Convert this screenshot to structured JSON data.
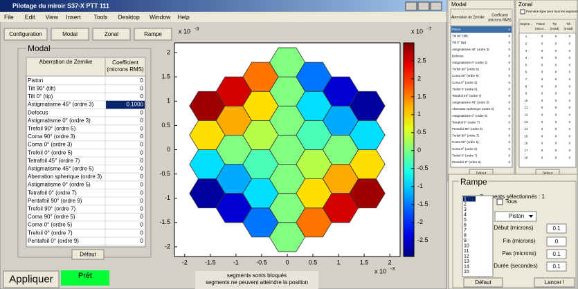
{
  "window": {
    "title": "Pilotage du miroir S37-X PTT 111",
    "menu": [
      "File",
      "Edit",
      "View",
      "Insert",
      "Tools",
      "Desktop",
      "Window",
      "Help"
    ],
    "tabs": [
      "Configuration",
      "Modal",
      "Zonal",
      "Rampe"
    ]
  },
  "modal": {
    "title": "Modal",
    "headers": [
      "Aberration de Zernike",
      "Coefficient",
      "(microns RMS)"
    ],
    "rows": [
      [
        "Piston",
        "0"
      ],
      [
        "Tilt 90° (tilt)",
        "0"
      ],
      [
        "Tilt 0° (tip)",
        "0"
      ],
      [
        "Astigmatisme 45° (ordre 3)",
        "0.1000"
      ],
      [
        "Defocus",
        "0"
      ],
      [
        "Astigmatisme 0° (ordre 3)",
        "0"
      ],
      [
        "Trefoil 90° (ordre 5)",
        "0"
      ],
      [
        "Coma 90° (ordre 3)",
        "0"
      ],
      [
        "Coma 0° (ordre 3)",
        "0"
      ],
      [
        "Trefoil 0° (ordre 5)",
        "0"
      ],
      [
        "Tetrafoil 45° (ordre 7)",
        "0"
      ],
      [
        "Astigmatisme 45° (ordre 5)",
        "0"
      ],
      [
        "Aberration spherique (ordre 3)",
        "0"
      ],
      [
        "Astigmatisme 0° (ordre 5)",
        "0"
      ],
      [
        "Tetrafoil 0° (ordre 7)",
        "0"
      ],
      [
        "Pentafoil 90° (ordre 9)",
        "0"
      ],
      [
        "Trefoil 90° (ordre 7)",
        "0"
      ],
      [
        "Coma 90° (ordre 5)",
        "0"
      ],
      [
        "Coma 0° (ordre 5)",
        "0"
      ],
      [
        "Trefoil 0° (ordre 7)",
        "0"
      ],
      [
        "Pentafoil 0° (ordre 9)",
        "0"
      ]
    ],
    "button": "Défaut"
  },
  "plot": {
    "x_scale": {
      "base": "x 10",
      "exp": "-3"
    },
    "y_scale": {
      "base": "x 10",
      "exp": "-3"
    },
    "xlim": [
      -2.2,
      2.2
    ],
    "ylim": [
      -2.2,
      2.2
    ],
    "xticks": [
      -2,
      -1.5,
      -1,
      -0.5,
      0,
      0.5,
      1,
      1.5,
      2
    ],
    "yticks": [
      -2,
      -1.5,
      -1,
      -0.5,
      0,
      0.5,
      1,
      1.5,
      2
    ],
    "colorbar": {
      "scale": {
        "base": "x 10",
        "exp": "-7"
      },
      "lim": [
        -2.95,
        3.0
      ],
      "ticks": [
        2.5,
        2,
        1.5,
        1,
        0.5,
        0,
        -0.5,
        -1,
        -1.5,
        -2,
        -2.5
      ]
    }
  },
  "footer": {
    "apply": "Appliquer",
    "status": "Prêt",
    "message": [
      "segments sonts bloqués",
      "segments ne peuvent atteindre la position"
    ]
  },
  "side_modal": {
    "title": "Modal",
    "headers": [
      "Aberration de Zernike",
      "Coefficient",
      "(microns RMS)"
    ],
    "rows": [
      [
        "Piston",
        "0"
      ],
      [
        "Tilt 90° (tilt)",
        "0"
      ],
      [
        "Tilt 0° (tip)",
        "0"
      ],
      [
        "Astigmatisme 45° (ordre 3)",
        "0"
      ],
      [
        "Defocus",
        "0"
      ],
      [
        "Astigmatisme 0° (ordre 3)",
        "0"
      ],
      [
        "Trefoil 90° (ordre 5)",
        "0"
      ],
      [
        "Coma 90° (ordre 5)",
        "0"
      ],
      [
        "Coma 0° (ordre 3)",
        "0"
      ],
      [
        "Trefoil 0° (ordre 5)",
        "0"
      ],
      [
        "Tetrafoil 45° (ordre 7)",
        "0"
      ],
      [
        "Astigmatisme 45° (ordre 5)",
        "0"
      ],
      [
        "Aberration spherique (ordre 3)",
        "0"
      ],
      [
        "Astigmatisme 0° (ordre 5)",
        "0"
      ],
      [
        "Tetrafoil 0° (ordre 7)",
        "0"
      ],
      [
        "Pentafoil 90° (ordre 9)",
        "0"
      ],
      [
        "Trefoil 90° (ordre 7)",
        "0"
      ],
      [
        "Coma 90° (ordre 5)",
        "0"
      ],
      [
        "Coma 0° (ordre 5)",
        "0"
      ],
      [
        "Trefoil 0° (ordre 7)",
        "0"
      ],
      [
        "Pentafoil 0° (ordre 9)",
        "0"
      ]
    ],
    "button": "Défaut"
  },
  "zonal": {
    "title": "Zonal",
    "checkbox": "Première ligne pour tous les segments",
    "headers": [
      [
        "Segme..."
      ],
      [
        "Piston",
        "(micro..."
      ],
      [
        "Tip",
        "(mrad)"
      ],
      [
        "Tilt",
        "(mrad)"
      ]
    ],
    "rows": [
      [
        "1",
        "0",
        "0",
        "0"
      ],
      [
        "2",
        "0",
        "0",
        "0"
      ],
      [
        "3",
        "0",
        "0",
        "0"
      ],
      [
        "4",
        "0",
        "0",
        "0"
      ],
      [
        "5",
        "0",
        "0",
        "0"
      ],
      [
        "6",
        "0",
        "0",
        "0"
      ],
      [
        "7",
        "0",
        "0",
        "0"
      ],
      [
        "8",
        "0",
        "0",
        "0"
      ],
      [
        "9",
        "0",
        "0",
        "0"
      ],
      [
        "10",
        "0",
        "0",
        "0"
      ],
      [
        "11",
        "0",
        "0",
        "0"
      ],
      [
        "12",
        "0",
        "0",
        "0"
      ],
      [
        "13",
        "0",
        "0",
        "0"
      ],
      [
        "14",
        "0",
        "0",
        "0"
      ],
      [
        "15",
        "0",
        "0",
        "0"
      ],
      [
        "16",
        "0",
        "0",
        "0"
      ],
      [
        "17",
        "0",
        "0",
        "0"
      ],
      [
        "18",
        "0",
        "0",
        "0"
      ]
    ],
    "button": "Défaut"
  },
  "rampe": {
    "title": "Rampe",
    "selected": "Segments sélectionnés : 1",
    "list": [
      "1",
      "2",
      "3",
      "4",
      "5",
      "6",
      "7",
      "8",
      "9",
      "10",
      "11",
      "12",
      "13",
      "14",
      "15"
    ],
    "all": "Tous",
    "mode": "Piston",
    "fields": [
      [
        "Début (microns)",
        "0.1"
      ],
      [
        "Fin (microns)",
        "0"
      ],
      [
        "Pas (microns)",
        "0.1"
      ],
      [
        "Durée (secondes)",
        "0.1"
      ]
    ],
    "default": "Défaut",
    "launch": "Lancer !"
  }
}
